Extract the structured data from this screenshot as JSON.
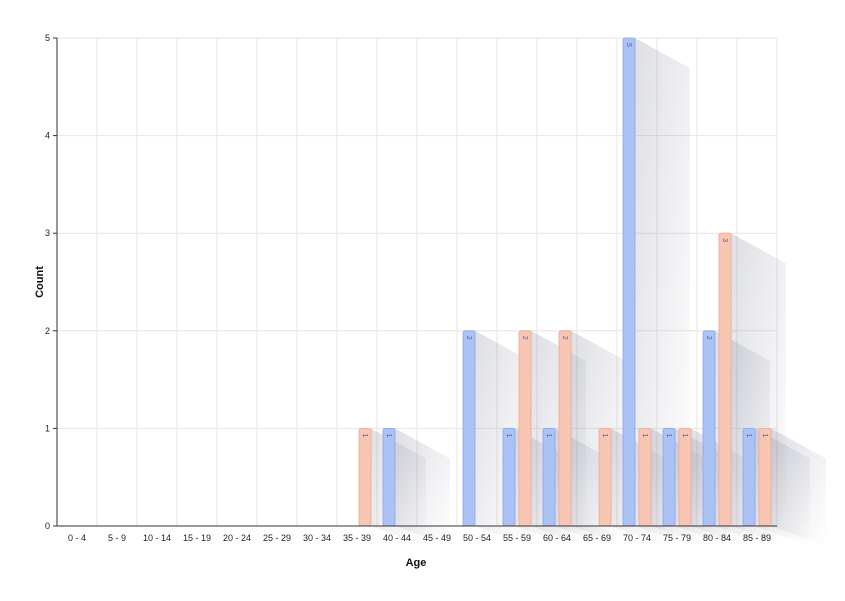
{
  "chart_data": {
    "type": "bar",
    "xlabel": "Age",
    "ylabel": "Count",
    "categories": [
      "0 - 4",
      "5 - 9",
      "10 - 14",
      "15 - 19",
      "20 - 24",
      "25 - 29",
      "30 - 34",
      "35 - 39",
      "40 - 44",
      "45 - 49",
      "50 - 54",
      "55 - 59",
      "60 - 64",
      "65 - 69",
      "70 - 74",
      "75 - 79",
      "80 - 84",
      "85 - 89"
    ],
    "series": [
      {
        "color": "#aac2f6",
        "values": [
          0,
          0,
          0,
          0,
          0,
          0,
          0,
          0,
          1,
          0,
          2,
          1,
          1,
          0,
          5,
          1,
          2,
          1
        ]
      },
      {
        "color": "#f9c6b3",
        "values": [
          0,
          0,
          0,
          0,
          0,
          0,
          0,
          1,
          0,
          0,
          0,
          2,
          2,
          1,
          1,
          1,
          3,
          1
        ]
      }
    ],
    "ylim": [
      0,
      5
    ],
    "yticks": [
      "0",
      "1",
      "2",
      "3",
      "4",
      "5"
    ],
    "grid": true,
    "data_labels": true
  }
}
